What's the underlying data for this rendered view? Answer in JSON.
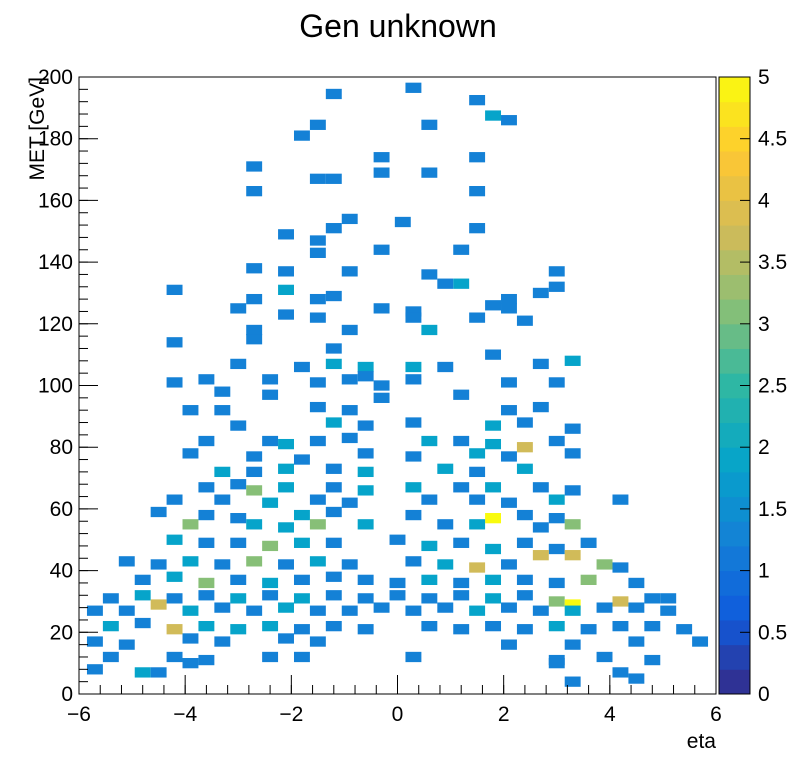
{
  "chart_data": {
    "type": "heatmap",
    "title": "Gen unknown",
    "xlabel": "eta",
    "ylabel": "MET [GeV]",
    "xlim": [
      -6,
      6
    ],
    "ylim": [
      0,
      200
    ],
    "x_bin_width": 0.3,
    "y_bin_width": 3.333,
    "x_ticks": [
      "−6",
      "−4",
      "−2",
      "0",
      "2",
      "4",
      "6"
    ],
    "y_ticks": [
      "0",
      "20",
      "40",
      "60",
      "80",
      "100",
      "120",
      "140",
      "160",
      "180",
      "200"
    ],
    "colorbar": {
      "min": 0,
      "max": 5,
      "ticks": [
        "0",
        "0.5",
        "1",
        "1.5",
        "2",
        "2.5",
        "3",
        "3.5",
        "4",
        "4.5",
        "5"
      ],
      "palette": [
        "#352a87",
        "#0f5cdd",
        "#1481d6",
        "#06a4ca",
        "#2eb7a4",
        "#87bf77",
        "#d1bb59",
        "#fec832",
        "#f9fb0e"
      ]
    },
    "cells": [
      [
        0.3,
        196.5,
        1
      ],
      [
        -1.2,
        194.5,
        1
      ],
      [
        1.5,
        192.5,
        1
      ],
      [
        1.8,
        187.5,
        2
      ],
      [
        2.1,
        186,
        1
      ],
      [
        -1.5,
        184.5,
        1
      ],
      [
        0.6,
        184.5,
        1
      ],
      [
        -1.8,
        181,
        1
      ],
      [
        -0.3,
        174,
        1
      ],
      [
        1.5,
        174,
        1
      ],
      [
        -2.7,
        171,
        1
      ],
      [
        -0.3,
        169,
        1
      ],
      [
        0.6,
        169,
        1
      ],
      [
        -1.5,
        167,
        1
      ],
      [
        -1.2,
        167,
        1
      ],
      [
        -2.7,
        163,
        1
      ],
      [
        1.5,
        163,
        1
      ],
      [
        -0.9,
        154,
        1
      ],
      [
        0.1,
        153,
        1
      ],
      [
        -1.2,
        151,
        1
      ],
      [
        1.5,
        151,
        1
      ],
      [
        -2.1,
        149,
        1
      ],
      [
        -1.5,
        147,
        1
      ],
      [
        -0.3,
        144,
        1
      ],
      [
        1.2,
        144,
        1
      ],
      [
        -1.5,
        143,
        1
      ],
      [
        -2.1,
        137,
        1
      ],
      [
        -2.7,
        138,
        1
      ],
      [
        -0.9,
        137,
        1
      ],
      [
        0.6,
        136,
        1
      ],
      [
        -4.2,
        131,
        1
      ],
      [
        -2.1,
        131,
        2
      ],
      [
        0.9,
        133,
        1
      ],
      [
        1.2,
        133,
        2
      ],
      [
        3.0,
        137,
        1
      ],
      [
        -2.7,
        128,
        1
      ],
      [
        -1.5,
        128,
        1
      ],
      [
        -1.2,
        129,
        1
      ],
      [
        2.1,
        128,
        1
      ],
      [
        2.7,
        130,
        1
      ],
      [
        3.0,
        132,
        1
      ],
      [
        -3.0,
        125,
        1
      ],
      [
        -0.3,
        125,
        1
      ],
      [
        0.3,
        124,
        1
      ],
      [
        1.8,
        126,
        1
      ],
      [
        2.1,
        125,
        1
      ],
      [
        -2.1,
        123,
        1
      ],
      [
        -1.5,
        122,
        1
      ],
      [
        0.3,
        122,
        1
      ],
      [
        1.5,
        122,
        1
      ],
      [
        2.4,
        121,
        1
      ],
      [
        -2.7,
        118,
        1
      ],
      [
        -0.9,
        118,
        1
      ],
      [
        0.6,
        118,
        2
      ],
      [
        -4.2,
        114,
        1
      ],
      [
        -2.7,
        115,
        1
      ],
      [
        -1.2,
        112,
        1
      ],
      [
        1.8,
        110,
        1
      ],
      [
        -3.0,
        107,
        1
      ],
      [
        -1.8,
        106,
        1
      ],
      [
        -1.2,
        107,
        2
      ],
      [
        -0.6,
        106,
        2
      ],
      [
        0.3,
        106,
        2
      ],
      [
        0.9,
        106,
        1
      ],
      [
        2.7,
        107,
        1
      ],
      [
        3.3,
        108,
        2
      ],
      [
        -4.2,
        101,
        1
      ],
      [
        -3.6,
        102,
        1
      ],
      [
        -2.4,
        102,
        1
      ],
      [
        -1.5,
        101,
        1
      ],
      [
        -0.9,
        102,
        1
      ],
      [
        -0.6,
        103,
        1
      ],
      [
        -0.3,
        100,
        1
      ],
      [
        0.3,
        102,
        1
      ],
      [
        2.1,
        101,
        1
      ],
      [
        3.0,
        101,
        1
      ],
      [
        -3.3,
        98,
        1
      ],
      [
        -2.4,
        97,
        1
      ],
      [
        -0.3,
        96,
        1
      ],
      [
        1.2,
        97,
        1
      ],
      [
        -3.9,
        92,
        1
      ],
      [
        -3.3,
        92,
        1
      ],
      [
        -1.5,
        93,
        1
      ],
      [
        -0.9,
        92,
        1
      ],
      [
        2.1,
        92,
        1
      ],
      [
        2.7,
        93,
        1
      ],
      [
        -3.0,
        87,
        1
      ],
      [
        -1.2,
        88,
        2
      ],
      [
        -0.6,
        87,
        1
      ],
      [
        0.3,
        88,
        1
      ],
      [
        1.8,
        87,
        2
      ],
      [
        2.4,
        88,
        1
      ],
      [
        3.3,
        86,
        1
      ],
      [
        -3.6,
        82,
        1
      ],
      [
        -2.4,
        82,
        1
      ],
      [
        -2.1,
        81,
        2
      ],
      [
        -1.5,
        82,
        1
      ],
      [
        -0.9,
        83,
        1
      ],
      [
        0.6,
        82,
        2
      ],
      [
        1.2,
        82,
        1
      ],
      [
        1.8,
        81,
        2
      ],
      [
        2.4,
        80,
        4
      ],
      [
        3.0,
        82,
        1
      ],
      [
        -3.9,
        78,
        1
      ],
      [
        -2.7,
        77,
        1
      ],
      [
        -1.8,
        76,
        1
      ],
      [
        -0.6,
        78,
        1
      ],
      [
        0.3,
        77,
        1
      ],
      [
        1.5,
        78,
        2
      ],
      [
        2.1,
        77,
        1
      ],
      [
        3.3,
        78,
        1
      ],
      [
        -3.3,
        72,
        2
      ],
      [
        -2.7,
        72,
        1
      ],
      [
        -2.1,
        73,
        2
      ],
      [
        -1.2,
        73,
        1
      ],
      [
        -0.6,
        72,
        2
      ],
      [
        0.9,
        73,
        2
      ],
      [
        1.5,
        72,
        1
      ],
      [
        2.4,
        73,
        2
      ],
      [
        -3.6,
        67,
        1
      ],
      [
        -3.0,
        68,
        1
      ],
      [
        -2.7,
        66,
        3
      ],
      [
        -2.1,
        67,
        2
      ],
      [
        -1.2,
        67,
        1
      ],
      [
        -0.6,
        66,
        2
      ],
      [
        0.3,
        67,
        2
      ],
      [
        1.2,
        67,
        1
      ],
      [
        1.8,
        67,
        2
      ],
      [
        2.7,
        67,
        1
      ],
      [
        3.3,
        66,
        1
      ],
      [
        -4.2,
        63,
        1
      ],
      [
        -3.3,
        63,
        1
      ],
      [
        -2.4,
        62,
        2
      ],
      [
        -1.5,
        63,
        1
      ],
      [
        -0.9,
        62,
        1
      ],
      [
        0.6,
        63,
        1
      ],
      [
        1.5,
        63,
        1
      ],
      [
        2.1,
        62,
        1
      ],
      [
        3.0,
        63,
        2
      ],
      [
        4.2,
        63,
        1
      ],
      [
        -4.5,
        59,
        1
      ],
      [
        -3.6,
        58,
        1
      ],
      [
        -3.0,
        57,
        1
      ],
      [
        -1.8,
        58,
        2
      ],
      [
        -1.2,
        59,
        1
      ],
      [
        0.3,
        58,
        1
      ],
      [
        1.8,
        57,
        5
      ],
      [
        2.4,
        58,
        1
      ],
      [
        3.0,
        57,
        1
      ],
      [
        -3.9,
        55,
        3
      ],
      [
        -2.7,
        55,
        2
      ],
      [
        -2.1,
        54,
        2
      ],
      [
        -1.5,
        55,
        3
      ],
      [
        -0.6,
        55,
        2
      ],
      [
        0.9,
        55,
        1
      ],
      [
        1.5,
        55,
        2
      ],
      [
        2.7,
        54,
        1
      ],
      [
        3.3,
        55,
        3
      ],
      [
        -4.2,
        50,
        2
      ],
      [
        -3.6,
        49,
        1
      ],
      [
        -3.0,
        49,
        1
      ],
      [
        -2.4,
        48,
        3
      ],
      [
        -1.8,
        49,
        2
      ],
      [
        -1.2,
        49,
        1
      ],
      [
        0.0,
        50,
        1
      ],
      [
        0.6,
        48,
        2
      ],
      [
        1.2,
        49,
        1
      ],
      [
        1.8,
        47,
        2
      ],
      [
        2.4,
        49,
        1
      ],
      [
        3.0,
        47,
        1
      ],
      [
        3.6,
        49,
        1
      ],
      [
        -5.1,
        43,
        1
      ],
      [
        -4.5,
        42,
        1
      ],
      [
        -3.9,
        43,
        2
      ],
      [
        -3.3,
        42,
        1
      ],
      [
        -2.7,
        43,
        3
      ],
      [
        -2.1,
        42,
        1
      ],
      [
        -1.5,
        43,
        2
      ],
      [
        -0.9,
        42,
        1
      ],
      [
        0.3,
        43,
        1
      ],
      [
        0.9,
        42,
        2
      ],
      [
        1.5,
        41,
        4
      ],
      [
        2.1,
        42,
        1
      ],
      [
        2.7,
        45,
        4
      ],
      [
        3.3,
        45,
        4
      ],
      [
        3.9,
        42,
        3
      ],
      [
        4.2,
        41,
        1
      ],
      [
        -4.8,
        37,
        1
      ],
      [
        -4.2,
        38,
        2
      ],
      [
        -3.6,
        36,
        3
      ],
      [
        -3.0,
        37,
        1
      ],
      [
        -2.4,
        36,
        2
      ],
      [
        -1.8,
        37,
        1
      ],
      [
        -1.2,
        38,
        1
      ],
      [
        -0.6,
        37,
        1
      ],
      [
        0.0,
        36,
        1
      ],
      [
        0.6,
        37,
        2
      ],
      [
        1.2,
        36,
        1
      ],
      [
        1.8,
        37,
        2
      ],
      [
        2.4,
        37,
        1
      ],
      [
        3.0,
        36,
        1
      ],
      [
        3.6,
        37,
        3
      ],
      [
        4.5,
        36,
        1
      ],
      [
        -5.4,
        31,
        1
      ],
      [
        -4.8,
        32,
        2
      ],
      [
        -4.2,
        31,
        1
      ],
      [
        -3.6,
        32,
        1
      ],
      [
        -3.0,
        31,
        2
      ],
      [
        -2.4,
        32,
        1
      ],
      [
        -1.8,
        31,
        2
      ],
      [
        -1.2,
        32,
        1
      ],
      [
        -0.6,
        31,
        1
      ],
      [
        0.0,
        32,
        1
      ],
      [
        0.6,
        31,
        1
      ],
      [
        1.2,
        32,
        1
      ],
      [
        1.8,
        31,
        2
      ],
      [
        2.4,
        32,
        1
      ],
      [
        3.0,
        30,
        3
      ],
      [
        3.3,
        29,
        5
      ],
      [
        4.2,
        30,
        4
      ],
      [
        4.8,
        31,
        1
      ],
      [
        5.1,
        31,
        1
      ],
      [
        -5.7,
        27,
        1
      ],
      [
        -5.1,
        27,
        1
      ],
      [
        -4.5,
        29,
        4
      ],
      [
        -3.9,
        27,
        2
      ],
      [
        -3.3,
        28,
        1
      ],
      [
        -2.7,
        27,
        1
      ],
      [
        -2.1,
        28,
        2
      ],
      [
        -1.5,
        27,
        1
      ],
      [
        -0.9,
        27,
        1
      ],
      [
        -0.3,
        28,
        1
      ],
      [
        0.3,
        27,
        1
      ],
      [
        0.9,
        28,
        1
      ],
      [
        1.5,
        27,
        2
      ],
      [
        2.1,
        28,
        1
      ],
      [
        2.7,
        27,
        1
      ],
      [
        3.3,
        27,
        2
      ],
      [
        3.9,
        28,
        1
      ],
      [
        4.5,
        28,
        1
      ],
      [
        5.1,
        27,
        1
      ],
      [
        -5.4,
        22,
        2
      ],
      [
        -4.8,
        23,
        1
      ],
      [
        -4.2,
        21,
        4
      ],
      [
        -3.6,
        22,
        2
      ],
      [
        -3.0,
        21,
        2
      ],
      [
        -2.4,
        22,
        2
      ],
      [
        -1.8,
        21,
        1
      ],
      [
        -1.2,
        22,
        1
      ],
      [
        -0.6,
        21,
        1
      ],
      [
        0.6,
        22,
        1
      ],
      [
        1.2,
        21,
        1
      ],
      [
        1.8,
        22,
        1
      ],
      [
        2.4,
        21,
        1
      ],
      [
        3.0,
        22,
        2
      ],
      [
        3.6,
        21,
        1
      ],
      [
        4.2,
        22,
        1
      ],
      [
        4.8,
        22,
        1
      ],
      [
        5.4,
        21,
        1
      ],
      [
        -5.7,
        17,
        1
      ],
      [
        -5.1,
        16,
        1
      ],
      [
        -3.9,
        18,
        1
      ],
      [
        -3.3,
        17,
        1
      ],
      [
        -2.1,
        18,
        1
      ],
      [
        -1.5,
        17,
        1
      ],
      [
        2.1,
        16,
        1
      ],
      [
        3.3,
        16,
        1
      ],
      [
        4.5,
        17,
        1
      ],
      [
        5.7,
        17,
        1
      ],
      [
        -5.4,
        12,
        1
      ],
      [
        -4.2,
        12,
        1
      ],
      [
        -3.6,
        11,
        1
      ],
      [
        -2.4,
        12,
        1
      ],
      [
        -1.8,
        12,
        1
      ],
      [
        0.3,
        12,
        1
      ],
      [
        3.0,
        11,
        1
      ],
      [
        3.9,
        12,
        1
      ],
      [
        4.8,
        11,
        1
      ],
      [
        -5.7,
        8,
        1
      ],
      [
        -4.8,
        7,
        2
      ],
      [
        -4.5,
        7,
        1
      ],
      [
        -3.9,
        10,
        1
      ],
      [
        3.0,
        10,
        1
      ],
      [
        4.2,
        7,
        1
      ],
      [
        3.3,
        4,
        1
      ],
      [
        4.5,
        5,
        1
      ]
    ]
  }
}
